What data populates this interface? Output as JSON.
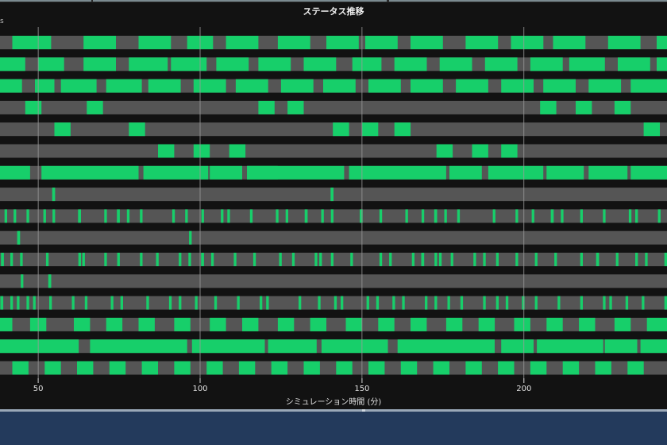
{
  "title": "ステータス推移",
  "corner_label": "s",
  "chart_data": {
    "type": "timeline",
    "title": "ステータス推移",
    "xlabel": "シミュレーション時間 (分)",
    "xlim": [
      38.2,
      244.2
    ],
    "xticks": [
      50,
      100,
      150,
      200
    ],
    "grid": true,
    "colors": {
      "background": "#121212",
      "lane": "#555555",
      "active": "#17cf6a",
      "grid": "#9a9a9a"
    },
    "lanes": [
      [
        [
          42,
          54
        ],
        [
          64,
          74
        ],
        [
          81,
          91
        ],
        [
          96,
          104
        ],
        [
          108,
          118
        ],
        [
          124,
          134
        ],
        [
          139,
          149
        ],
        [
          151,
          161
        ],
        [
          165,
          175
        ],
        [
          182,
          192
        ],
        [
          196,
          206
        ],
        [
          209,
          219
        ],
        [
          226,
          236
        ],
        [
          241,
          244.2
        ]
      ],
      [
        [
          38.2,
          46
        ],
        [
          50,
          58
        ],
        [
          64,
          74
        ],
        [
          78,
          90
        ],
        [
          91,
          102
        ],
        [
          105,
          115
        ],
        [
          118,
          128
        ],
        [
          132,
          142
        ],
        [
          147,
          156
        ],
        [
          160,
          170
        ],
        [
          174,
          184
        ],
        [
          188,
          198
        ],
        [
          202,
          212
        ],
        [
          214,
          225
        ],
        [
          229,
          239
        ],
        [
          241,
          244.2
        ]
      ],
      [
        [
          38.2,
          45
        ],
        [
          49,
          55
        ],
        [
          57,
          68
        ],
        [
          71,
          82
        ],
        [
          84,
          94
        ],
        [
          98,
          108
        ],
        [
          111,
          121
        ],
        [
          125,
          135
        ],
        [
          138,
          148
        ],
        [
          152,
          162
        ],
        [
          165,
          175
        ],
        [
          179,
          189
        ],
        [
          193,
          203
        ],
        [
          206,
          216
        ],
        [
          220,
          230
        ],
        [
          233,
          244.2
        ]
      ],
      [
        [
          46,
          51
        ],
        [
          65,
          70
        ],
        [
          118,
          123
        ],
        [
          127,
          132
        ],
        [
          205,
          210
        ],
        [
          216,
          221
        ],
        [
          228,
          233
        ]
      ],
      [
        [
          55,
          60
        ],
        [
          78,
          83
        ],
        [
          141,
          146
        ],
        [
          150,
          155
        ],
        [
          160,
          165
        ],
        [
          237,
          242
        ]
      ],
      [
        [
          87,
          92
        ],
        [
          98,
          103
        ],
        [
          109,
          114
        ],
        [
          173,
          178
        ],
        [
          184,
          189
        ],
        [
          193,
          198
        ]
      ],
      [
        [
          38.2,
          47.5
        ],
        [
          51,
          81
        ],
        [
          82.5,
          102.5
        ],
        [
          103,
          113
        ],
        [
          114.5,
          124
        ],
        [
          114.5,
          144.5
        ],
        [
          146,
          176
        ],
        [
          177,
          187
        ],
        [
          189,
          206
        ],
        [
          207,
          218.5
        ],
        [
          220,
          232
        ],
        [
          233,
          244.2
        ]
      ],
      [
        [
          54.3,
          55.2
        ],
        [
          140.3,
          141.2
        ]
      ],
      [
        [
          39.6,
          40.4
        ],
        [
          42.4,
          43.2
        ],
        [
          46.4,
          47.2
        ],
        [
          51.6,
          52.4
        ],
        [
          54.4,
          55.2
        ],
        [
          62.3,
          63.2
        ],
        [
          70.4,
          71.2
        ],
        [
          74.3,
          75.2
        ],
        [
          77.4,
          78.2
        ],
        [
          81.4,
          82.2
        ],
        [
          91.4,
          92.2
        ],
        [
          95.4,
          96.2
        ],
        [
          100.4,
          101.2
        ],
        [
          106.4,
          107.2
        ],
        [
          108.4,
          109.2
        ],
        [
          115.4,
          116.2
        ],
        [
          123.4,
          124.2
        ],
        [
          126.4,
          127.2
        ],
        [
          132.3,
          133.2
        ],
        [
          137.4,
          138.2
        ],
        [
          140.4,
          141.2
        ],
        [
          149.3,
          150.2
        ],
        [
          155.4,
          156.2
        ],
        [
          163.4,
          164.2
        ],
        [
          168.4,
          169.2
        ],
        [
          172.3,
          173.2
        ],
        [
          175.4,
          176.2
        ],
        [
          179.4,
          180.2
        ],
        [
          190.4,
          191.2
        ],
        [
          197.4,
          198.2
        ],
        [
          202.4,
          203.2
        ],
        [
          208.3,
          209.2
        ],
        [
          211.4,
          212.2
        ],
        [
          217.4,
          218.2
        ],
        [
          224.4,
          225.2
        ],
        [
          232.4,
          233.2
        ],
        [
          234.4,
          235.2
        ],
        [
          241.4,
          242.2
        ]
      ],
      [
        [
          43.5,
          44.4
        ],
        [
          96.6,
          97.4
        ]
      ],
      [
        [
          38.5,
          39.4
        ],
        [
          41.4,
          42.2
        ],
        [
          44.4,
          45.2
        ],
        [
          52.4,
          53.2
        ],
        [
          62.4,
          63.2
        ],
        [
          63.6,
          64.4
        ],
        [
          70.4,
          71.2
        ],
        [
          74.4,
          75.2
        ],
        [
          81.4,
          82.2
        ],
        [
          86.4,
          87.2
        ],
        [
          93.4,
          94.2
        ],
        [
          96.4,
          97.2
        ],
        [
          100.3,
          101.2
        ],
        [
          103.4,
          104.2
        ],
        [
          110.4,
          111.2
        ],
        [
          116.4,
          117.2
        ],
        [
          124.4,
          125.2
        ],
        [
          128.4,
          129.2
        ],
        [
          135.4,
          136.2
        ],
        [
          136.8,
          137.6
        ],
        [
          140.4,
          141.2
        ],
        [
          146.4,
          147.2
        ],
        [
          155.4,
          156.2
        ],
        [
          158.4,
          159.2
        ],
        [
          165.4,
          166.2
        ],
        [
          168.3,
          169.2
        ],
        [
          172.4,
          173.2
        ],
        [
          173.8,
          174.6
        ],
        [
          177.4,
          178.2
        ],
        [
          184.4,
          185.2
        ],
        [
          187.4,
          188.2
        ],
        [
          191.4,
          192.2
        ],
        [
          197.4,
          198.2
        ],
        [
          203.4,
          204.2
        ],
        [
          209.4,
          210.2
        ],
        [
          217.4,
          218.2
        ],
        [
          222.3,
          223.2
        ],
        [
          228.4,
          229.2
        ],
        [
          234.4,
          235.2
        ],
        [
          237.4,
          238.2
        ],
        [
          243.4,
          244.2
        ]
      ],
      [
        [
          44.6,
          45.4
        ],
        [
          53.1,
          54
        ]
      ],
      [
        [
          38.3,
          39.2
        ],
        [
          41.4,
          42.2
        ],
        [
          43.4,
          44.2
        ],
        [
          46.4,
          47.2
        ],
        [
          48.4,
          49.2
        ],
        [
          53.4,
          54.2
        ],
        [
          60.4,
          61.2
        ],
        [
          64.4,
          65.2
        ],
        [
          72.4,
          73.2
        ],
        [
          75.4,
          76.2
        ],
        [
          83.4,
          84.2
        ],
        [
          90.4,
          91.2
        ],
        [
          93.4,
          94.2
        ],
        [
          98.4,
          99.2
        ],
        [
          104.4,
          105.2
        ],
        [
          111.4,
          112.2
        ],
        [
          118.4,
          119.2
        ],
        [
          120.4,
          121.2
        ],
        [
          130.4,
          131.2
        ],
        [
          136.4,
          137.2
        ],
        [
          141.4,
          142.2
        ],
        [
          143.4,
          144.2
        ],
        [
          151.4,
          152.2
        ],
        [
          154.4,
          155.2
        ],
        [
          159.4,
          160.2
        ],
        [
          162.4,
          163.2
        ],
        [
          169.4,
          170.2
        ],
        [
          172.4,
          173.2
        ],
        [
          176.4,
          177.2
        ],
        [
          180.4,
          181.2
        ],
        [
          187.4,
          188.2
        ],
        [
          191.4,
          192.2
        ],
        [
          194.4,
          195.2
        ],
        [
          199.4,
          200.2
        ],
        [
          203.4,
          204.2
        ],
        [
          210.4,
          211.2
        ],
        [
          217.4,
          218.2
        ],
        [
          224.4,
          225.2
        ],
        [
          226.4,
          227.2
        ],
        [
          231.4,
          232.2
        ],
        [
          236.4,
          237.2
        ],
        [
          243.4,
          244.2
        ]
      ],
      [
        [
          38.2,
          42
        ],
        [
          47.5,
          52.5
        ],
        [
          61,
          66
        ],
        [
          71,
          76
        ],
        [
          81,
          86
        ],
        [
          92,
          97
        ],
        [
          103,
          108
        ],
        [
          113,
          118
        ],
        [
          124,
          129
        ],
        [
          134,
          139
        ],
        [
          145,
          150
        ],
        [
          155,
          160
        ],
        [
          165,
          170
        ],
        [
          176,
          181
        ],
        [
          186,
          191
        ],
        [
          197,
          202
        ],
        [
          207,
          212
        ],
        [
          217,
          222
        ],
        [
          228,
          233
        ],
        [
          238,
          244.2
        ]
      ],
      [
        [
          38.2,
          62.5
        ],
        [
          66,
          96
        ],
        [
          97.5,
          120
        ],
        [
          121,
          136
        ],
        [
          137.5,
          158
        ],
        [
          161,
          191
        ],
        [
          193,
          203
        ],
        [
          204,
          224.5
        ],
        [
          225,
          235
        ],
        [
          236,
          244.2
        ]
      ],
      [
        [
          42,
          47
        ],
        [
          52,
          57
        ],
        [
          62,
          67
        ],
        [
          72,
          77
        ],
        [
          82,
          87
        ],
        [
          92,
          97
        ],
        [
          102,
          107
        ],
        [
          112,
          117
        ],
        [
          122,
          127
        ],
        [
          132,
          137
        ],
        [
          142,
          147
        ],
        [
          152,
          157
        ],
        [
          162,
          167
        ],
        [
          172,
          177
        ],
        [
          182,
          187
        ],
        [
          192,
          197
        ],
        [
          202,
          207
        ],
        [
          212,
          217
        ],
        [
          222,
          227
        ],
        [
          232,
          237
        ]
      ]
    ]
  }
}
